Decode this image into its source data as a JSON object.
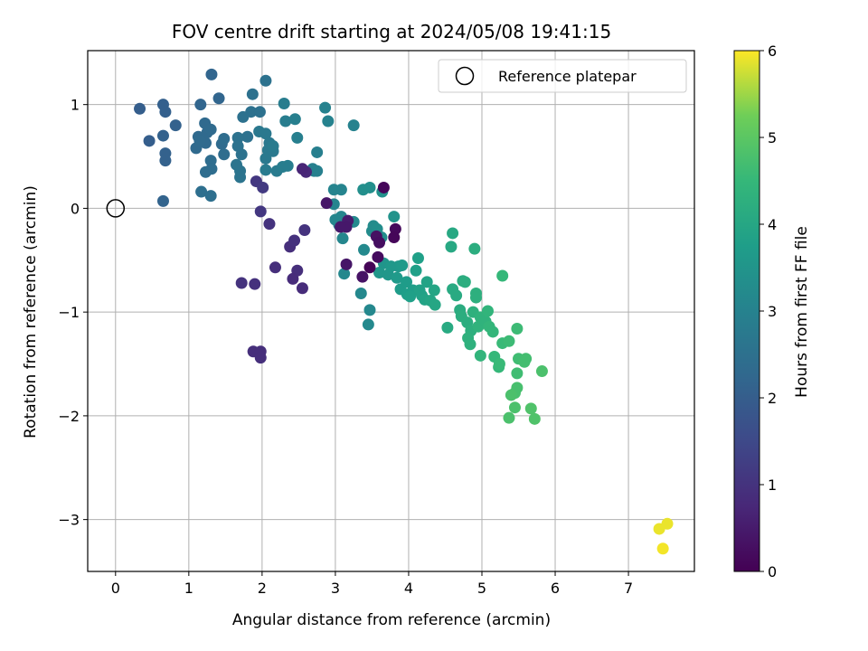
{
  "chart_data": {
    "type": "scatter",
    "title": "FOV centre drift starting at 2024/05/08 19:41:15",
    "xlabel": "Angular distance from reference (arcmin)",
    "ylabel": "Rotation from reference (arcmin)",
    "xlim": [
      -0.38,
      7.9
    ],
    "ylim": [
      -3.5,
      1.52
    ],
    "xticks": [
      0,
      1,
      2,
      3,
      4,
      5,
      6,
      7
    ],
    "yticks": [
      -3,
      -2,
      -1,
      0,
      1
    ],
    "xtick_labels": [
      "0",
      "1",
      "2",
      "3",
      "4",
      "5",
      "6",
      "7"
    ],
    "ytick_labels": [
      "−3",
      "−2",
      "−1",
      "0",
      "1"
    ],
    "grid": true,
    "colormap": "viridis",
    "colorbar": {
      "label": "Hours from first FF file",
      "range": [
        0,
        6
      ],
      "ticks": [
        0,
        1,
        2,
        3,
        4,
        5,
        6
      ],
      "tick_labels": [
        "0",
        "1",
        "2",
        "3",
        "4",
        "5",
        "6"
      ]
    },
    "legend": {
      "placement": "upper right",
      "entries": [
        "Reference platepar"
      ]
    },
    "reference_point": {
      "x": 0,
      "y": 0
    },
    "points": [
      {
        "x": 0.33,
        "y": 0.96,
        "c": 2.0
      },
      {
        "x": 0.46,
        "y": 0.65,
        "c": 2.0
      },
      {
        "x": 0.65,
        "y": 1.0,
        "c": 2.05
      },
      {
        "x": 0.68,
        "y": 0.93,
        "c": 2.05
      },
      {
        "x": 0.82,
        "y": 0.8,
        "c": 2.1
      },
      {
        "x": 0.65,
        "y": 0.7,
        "c": 2.1
      },
      {
        "x": 0.68,
        "y": 0.53,
        "c": 2.1
      },
      {
        "x": 0.68,
        "y": 0.46,
        "c": 2.1
      },
      {
        "x": 0.65,
        "y": 0.07,
        "c": 2.15
      },
      {
        "x": 1.16,
        "y": 1.0,
        "c": 2.2
      },
      {
        "x": 1.31,
        "y": 1.29,
        "c": 2.2
      },
      {
        "x": 1.41,
        "y": 1.06,
        "c": 2.2
      },
      {
        "x": 1.22,
        "y": 0.82,
        "c": 2.3
      },
      {
        "x": 1.13,
        "y": 0.69,
        "c": 2.3
      },
      {
        "x": 1.23,
        "y": 0.63,
        "c": 2.3
      },
      {
        "x": 1.25,
        "y": 0.73,
        "c": 2.3
      },
      {
        "x": 1.1,
        "y": 0.58,
        "c": 2.3
      },
      {
        "x": 1.15,
        "y": 0.65,
        "c": 2.35
      },
      {
        "x": 1.3,
        "y": 0.76,
        "c": 2.35
      },
      {
        "x": 1.45,
        "y": 0.62,
        "c": 2.35
      },
      {
        "x": 1.48,
        "y": 0.67,
        "c": 2.4
      },
      {
        "x": 1.48,
        "y": 0.52,
        "c": 2.4
      },
      {
        "x": 1.3,
        "y": 0.46,
        "c": 2.4
      },
      {
        "x": 1.31,
        "y": 0.38,
        "c": 2.4
      },
      {
        "x": 1.23,
        "y": 0.35,
        "c": 2.4
      },
      {
        "x": 1.17,
        "y": 0.16,
        "c": 2.45
      },
      {
        "x": 1.3,
        "y": 0.12,
        "c": 2.45
      },
      {
        "x": 1.87,
        "y": 1.1,
        "c": 2.5
      },
      {
        "x": 2.05,
        "y": 1.23,
        "c": 2.55
      },
      {
        "x": 1.85,
        "y": 0.93,
        "c": 2.5
      },
      {
        "x": 1.97,
        "y": 0.93,
        "c": 2.5
      },
      {
        "x": 1.74,
        "y": 0.88,
        "c": 2.5
      },
      {
        "x": 1.8,
        "y": 0.69,
        "c": 2.5
      },
      {
        "x": 1.67,
        "y": 0.68,
        "c": 2.55
      },
      {
        "x": 1.67,
        "y": 0.6,
        "c": 2.55
      },
      {
        "x": 1.72,
        "y": 0.52,
        "c": 2.55
      },
      {
        "x": 1.65,
        "y": 0.42,
        "c": 2.6
      },
      {
        "x": 1.7,
        "y": 0.36,
        "c": 2.6
      },
      {
        "x": 1.7,
        "y": 0.3,
        "c": 2.6
      },
      {
        "x": 1.96,
        "y": 0.74,
        "c": 2.7
      },
      {
        "x": 2.05,
        "y": 0.72,
        "c": 2.7
      },
      {
        "x": 2.1,
        "y": 0.63,
        "c": 2.7
      },
      {
        "x": 2.08,
        "y": 0.56,
        "c": 2.75
      },
      {
        "x": 2.05,
        "y": 0.48,
        "c": 2.75
      },
      {
        "x": 2.15,
        "y": 0.55,
        "c": 2.75
      },
      {
        "x": 2.15,
        "y": 0.6,
        "c": 2.8
      },
      {
        "x": 2.05,
        "y": 0.37,
        "c": 2.8
      },
      {
        "x": 2.2,
        "y": 0.36,
        "c": 2.8
      },
      {
        "x": 2.28,
        "y": 0.4,
        "c": 2.85
      },
      {
        "x": 2.35,
        "y": 0.41,
        "c": 2.85
      },
      {
        "x": 2.32,
        "y": 0.84,
        "c": 2.85
      },
      {
        "x": 2.3,
        "y": 1.01,
        "c": 2.85
      },
      {
        "x": 2.45,
        "y": 0.86,
        "c": 2.9
      },
      {
        "x": 2.48,
        "y": 0.68,
        "c": 2.9
      },
      {
        "x": 2.71,
        "y": 0.36,
        "c": 2.9
      },
      {
        "x": 2.75,
        "y": 0.54,
        "c": 2.9
      },
      {
        "x": 2.75,
        "y": 0.36,
        "c": 2.95
      },
      {
        "x": 2.69,
        "y": 0.38,
        "c": 2.95
      },
      {
        "x": 2.86,
        "y": 0.97,
        "c": 3.0
      },
      {
        "x": 2.9,
        "y": 0.84,
        "c": 3.0
      },
      {
        "x": 3.25,
        "y": 0.8,
        "c": 3.0
      },
      {
        "x": 2.98,
        "y": 0.18,
        "c": 3.05
      },
      {
        "x": 3.08,
        "y": 0.18,
        "c": 3.05
      },
      {
        "x": 2.98,
        "y": 0.04,
        "c": 3.05
      },
      {
        "x": 3.0,
        "y": -0.11,
        "c": 3.1
      },
      {
        "x": 3.08,
        "y": -0.08,
        "c": 3.1
      },
      {
        "x": 3.05,
        "y": -0.16,
        "c": 3.1
      },
      {
        "x": 3.1,
        "y": -0.29,
        "c": 3.1
      },
      {
        "x": 3.12,
        "y": -0.63,
        "c": 3.15
      },
      {
        "x": 3.35,
        "y": -0.82,
        "c": 3.15
      },
      {
        "x": 3.47,
        "y": -0.98,
        "c": 3.15
      },
      {
        "x": 3.45,
        "y": -1.12,
        "c": 3.2
      },
      {
        "x": 3.39,
        "y": -0.4,
        "c": 3.2
      },
      {
        "x": 3.25,
        "y": -0.13,
        "c": 3.2
      },
      {
        "x": 3.5,
        "y": -0.22,
        "c": 3.25
      },
      {
        "x": 3.52,
        "y": -0.17,
        "c": 3.25
      },
      {
        "x": 3.57,
        "y": -0.2,
        "c": 3.3
      },
      {
        "x": 3.63,
        "y": -0.28,
        "c": 3.3
      },
      {
        "x": 3.38,
        "y": 0.18,
        "c": 3.35
      },
      {
        "x": 3.47,
        "y": 0.2,
        "c": 3.35
      },
      {
        "x": 3.64,
        "y": 0.16,
        "c": 3.4
      },
      {
        "x": 3.8,
        "y": -0.08,
        "c": 3.45
      },
      {
        "x": 3.66,
        "y": -0.53,
        "c": 3.5
      },
      {
        "x": 3.6,
        "y": -0.62,
        "c": 3.55
      },
      {
        "x": 3.72,
        "y": -0.64,
        "c": 3.55
      },
      {
        "x": 3.76,
        "y": -0.56,
        "c": 3.6
      },
      {
        "x": 3.86,
        "y": -0.56,
        "c": 3.6
      },
      {
        "x": 3.91,
        "y": -0.55,
        "c": 3.65
      },
      {
        "x": 3.84,
        "y": -0.67,
        "c": 3.65
      },
      {
        "x": 3.89,
        "y": -0.78,
        "c": 3.7
      },
      {
        "x": 3.97,
        "y": -0.71,
        "c": 3.7
      },
      {
        "x": 3.98,
        "y": -0.83,
        "c": 3.75
      },
      {
        "x": 4.06,
        "y": -0.79,
        "c": 3.75
      },
      {
        "x": 4.1,
        "y": -0.6,
        "c": 3.8
      },
      {
        "x": 4.13,
        "y": -0.48,
        "c": 3.8
      },
      {
        "x": 4.15,
        "y": -0.79,
        "c": 3.85
      },
      {
        "x": 4.18,
        "y": -0.84,
        "c": 3.85
      },
      {
        "x": 4.25,
        "y": -0.71,
        "c": 3.9
      },
      {
        "x": 4.22,
        "y": -0.88,
        "c": 3.9
      },
      {
        "x": 4.3,
        "y": -0.89,
        "c": 3.95
      },
      {
        "x": 4.35,
        "y": -0.79,
        "c": 3.95
      },
      {
        "x": 4.36,
        "y": -0.93,
        "c": 4.0
      },
      {
        "x": 4.02,
        "y": -0.85,
        "c": 3.8
      },
      {
        "x": 4.53,
        "y": -1.15,
        "c": 4.1
      },
      {
        "x": 4.58,
        "y": -0.37,
        "c": 4.05
      },
      {
        "x": 4.6,
        "y": -0.24,
        "c": 4.05
      },
      {
        "x": 4.6,
        "y": -0.78,
        "c": 4.1
      },
      {
        "x": 4.65,
        "y": -0.84,
        "c": 4.1
      },
      {
        "x": 4.7,
        "y": -0.98,
        "c": 4.15
      },
      {
        "x": 4.72,
        "y": -1.04,
        "c": 4.2
      },
      {
        "x": 4.74,
        "y": -0.7,
        "c": 4.15
      },
      {
        "x": 4.77,
        "y": -0.71,
        "c": 4.2
      },
      {
        "x": 4.8,
        "y": -1.1,
        "c": 4.2
      },
      {
        "x": 4.85,
        "y": -1.18,
        "c": 4.25
      },
      {
        "x": 4.81,
        "y": -1.25,
        "c": 4.3
      },
      {
        "x": 4.84,
        "y": -1.31,
        "c": 4.3
      },
      {
        "x": 4.88,
        "y": -1.0,
        "c": 4.3
      },
      {
        "x": 4.92,
        "y": -0.82,
        "c": 4.25
      },
      {
        "x": 4.92,
        "y": -0.86,
        "c": 4.25
      },
      {
        "x": 4.9,
        "y": -0.39,
        "c": 4.2
      },
      {
        "x": 4.95,
        "y": -1.14,
        "c": 4.35
      },
      {
        "x": 4.98,
        "y": -1.05,
        "c": 4.35
      },
      {
        "x": 5.05,
        "y": -1.09,
        "c": 4.35
      },
      {
        "x": 5.08,
        "y": -0.99,
        "c": 4.4
      },
      {
        "x": 4.98,
        "y": -1.42,
        "c": 4.4
      },
      {
        "x": 5.1,
        "y": -1.14,
        "c": 4.45
      },
      {
        "x": 5.15,
        "y": -1.19,
        "c": 4.45
      },
      {
        "x": 5.17,
        "y": -1.43,
        "c": 4.5
      },
      {
        "x": 5.23,
        "y": -1.53,
        "c": 4.5
      },
      {
        "x": 5.28,
        "y": -1.3,
        "c": 4.55
      },
      {
        "x": 5.28,
        "y": -0.65,
        "c": 4.5
      },
      {
        "x": 5.37,
        "y": -1.28,
        "c": 4.6
      },
      {
        "x": 5.48,
        "y": -1.16,
        "c": 4.6
      },
      {
        "x": 5.5,
        "y": -1.45,
        "c": 4.65
      },
      {
        "x": 5.48,
        "y": -1.59,
        "c": 4.65
      },
      {
        "x": 5.58,
        "y": -1.48,
        "c": 4.7
      },
      {
        "x": 5.6,
        "y": -1.45,
        "c": 4.7
      },
      {
        "x": 5.48,
        "y": -1.73,
        "c": 4.75
      },
      {
        "x": 5.45,
        "y": -1.78,
        "c": 4.75
      },
      {
        "x": 5.4,
        "y": -1.8,
        "c": 4.8
      },
      {
        "x": 5.45,
        "y": -1.92,
        "c": 4.8
      },
      {
        "x": 5.37,
        "y": -2.02,
        "c": 4.8
      },
      {
        "x": 5.67,
        "y": -1.93,
        "c": 4.85
      },
      {
        "x": 5.72,
        "y": -2.03,
        "c": 4.85
      },
      {
        "x": 5.82,
        "y": -1.57,
        "c": 4.8
      },
      {
        "x": 5.24,
        "y": -1.5,
        "c": 4.55
      },
      {
        "x": 2.48,
        "y": -0.6,
        "c": 0.9
      },
      {
        "x": 2.42,
        "y": -0.68,
        "c": 0.85
      },
      {
        "x": 2.55,
        "y": -0.77,
        "c": 0.85
      },
      {
        "x": 2.18,
        "y": -0.57,
        "c": 0.9
      },
      {
        "x": 2.38,
        "y": -0.37,
        "c": 0.9
      },
      {
        "x": 2.44,
        "y": -0.31,
        "c": 0.95
      },
      {
        "x": 2.58,
        "y": -0.21,
        "c": 1.0
      },
      {
        "x": 2.1,
        "y": -0.15,
        "c": 1.0
      },
      {
        "x": 1.98,
        "y": -0.03,
        "c": 1.1
      },
      {
        "x": 1.92,
        "y": 0.26,
        "c": 1.1
      },
      {
        "x": 2.01,
        "y": 0.2,
        "c": 1.15
      },
      {
        "x": 1.72,
        "y": -0.72,
        "c": 1.0
      },
      {
        "x": 1.9,
        "y": -0.73,
        "c": 0.95
      },
      {
        "x": 1.88,
        "y": -1.38,
        "c": 0.9
      },
      {
        "x": 1.98,
        "y": -1.38,
        "c": 0.9
      },
      {
        "x": 1.98,
        "y": -1.44,
        "c": 0.9
      },
      {
        "x": 2.6,
        "y": 0.35,
        "c": 0.75
      },
      {
        "x": 2.55,
        "y": 0.38,
        "c": 0.7
      },
      {
        "x": 2.88,
        "y": 0.05,
        "c": 0.4
      },
      {
        "x": 3.17,
        "y": -0.12,
        "c": 0.5
      },
      {
        "x": 3.15,
        "y": -0.18,
        "c": 0.45
      },
      {
        "x": 3.07,
        "y": -0.18,
        "c": 0.45
      },
      {
        "x": 3.15,
        "y": -0.54,
        "c": 0.4
      },
      {
        "x": 3.37,
        "y": -0.66,
        "c": 0.35
      },
      {
        "x": 3.56,
        "y": -0.27,
        "c": 0.3
      },
      {
        "x": 3.6,
        "y": -0.33,
        "c": 0.25
      },
      {
        "x": 3.58,
        "y": -0.47,
        "c": 0.2
      },
      {
        "x": 3.66,
        "y": 0.2,
        "c": 0.1
      },
      {
        "x": 3.82,
        "y": -0.2,
        "c": 0.15
      },
      {
        "x": 3.8,
        "y": -0.28,
        "c": 0.1
      },
      {
        "x": 3.47,
        "y": -0.57,
        "c": 0.05
      },
      {
        "x": 7.53,
        "y": -3.04,
        "c": 5.9
      },
      {
        "x": 7.42,
        "y": -3.09,
        "c": 5.9
      },
      {
        "x": 7.47,
        "y": -3.28,
        "c": 5.95
      }
    ]
  }
}
